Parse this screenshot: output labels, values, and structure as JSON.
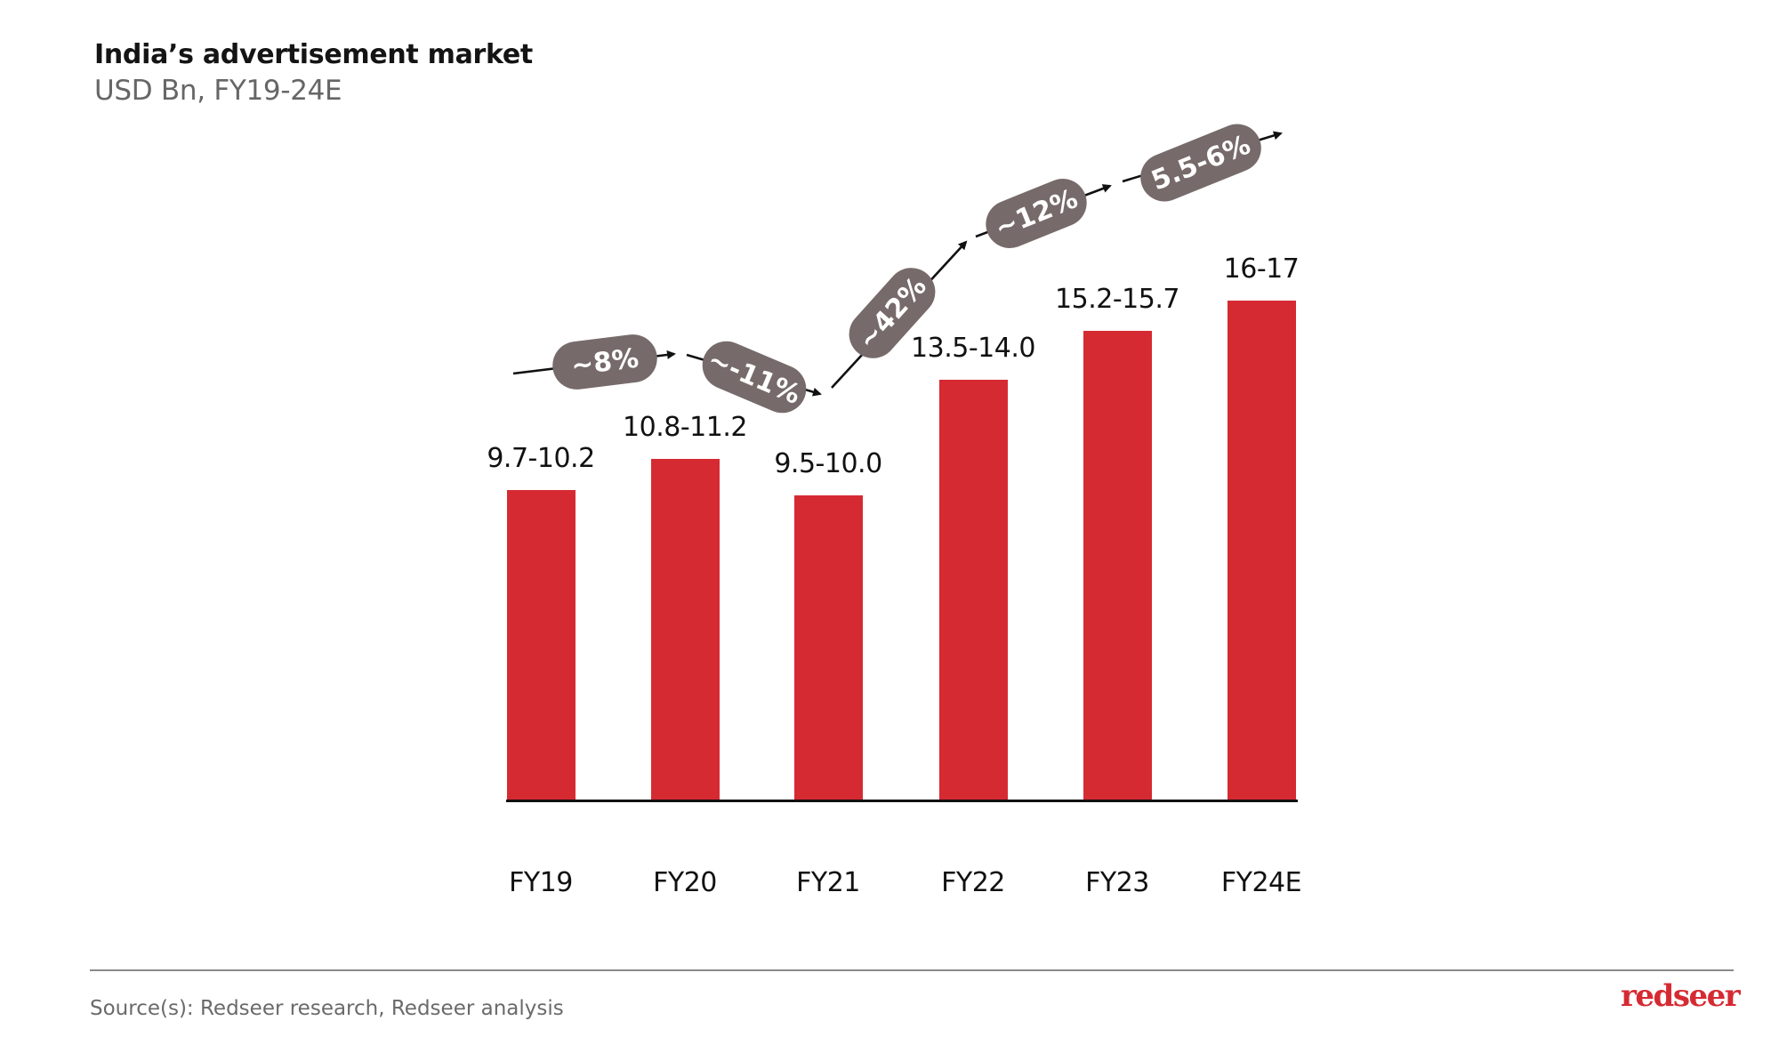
{
  "header": {
    "title": "India’s advertisement market",
    "subtitle": "USD Bn, FY19-24E"
  },
  "footer": {
    "source": "Source(s): Redseer research, Redseer analysis",
    "logo": "redseer"
  },
  "colors": {
    "bar": "#D62A33",
    "pill": "#766B6A",
    "text": "#111111",
    "subtitle": "#666666"
  },
  "chart_data": {
    "type": "bar",
    "title": "India’s advertisement market",
    "subtitle": "USD Bn, FY19-24E",
    "xlabel": "",
    "ylabel": "USD Bn",
    "categories": [
      "FY19",
      "FY20",
      "FY21",
      "FY22",
      "FY23",
      "FY24E"
    ],
    "labels": [
      "9.7-10.2",
      "10.8-11.2",
      "9.5-10.0",
      "13.5-14.0",
      "15.2-15.7",
      "16-17"
    ],
    "ranges": [
      [
        9.7,
        10.2
      ],
      [
        10.8,
        11.2
      ],
      [
        9.5,
        10.0
      ],
      [
        13.5,
        14.0
      ],
      [
        15.2,
        15.7
      ],
      [
        16,
        17
      ]
    ],
    "values": [
      9.95,
      11.0,
      9.75,
      13.75,
      15.45,
      16.5
    ],
    "growth_annotations": [
      {
        "from": "FY19",
        "to": "FY20",
        "label": "~8%"
      },
      {
        "from": "FY20",
        "to": "FY21",
        "label": "~-11%"
      },
      {
        "from": "FY21",
        "to": "FY22",
        "label": "~42%"
      },
      {
        "from": "FY22",
        "to": "FY23",
        "label": "~12%"
      },
      {
        "from": "FY23",
        "to": "FY24E",
        "label": "5.5-6%"
      }
    ],
    "grid": false,
    "legend": null,
    "yaxis_visible": false
  }
}
